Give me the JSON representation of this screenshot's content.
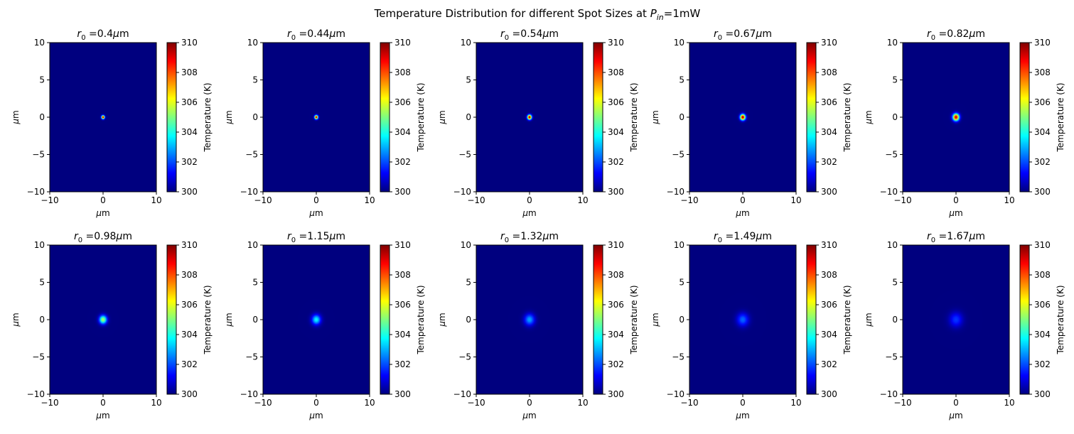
{
  "figure": {
    "title_main": "Temperature Distribution for different Spot Sizes at ",
    "title_symbol": "P",
    "title_subscript": "in",
    "title_suffix": "=1mW"
  },
  "chart_data": [
    {
      "type": "heatmap",
      "title": "r0 =0.4μm",
      "title_value": "=0.4",
      "spot_radius_um": 0.4,
      "peak_temperature_k": 310.0
    },
    {
      "type": "heatmap",
      "title": "r0 =0.44μm",
      "title_value": "=0.44",
      "spot_radius_um": 0.44,
      "peak_temperature_k": 310.0
    },
    {
      "type": "heatmap",
      "title": "r0 =0.54μm",
      "title_value": "=0.54",
      "spot_radius_um": 0.54,
      "peak_temperature_k": 310.0
    },
    {
      "type": "heatmap",
      "title": "r0 =0.67μm",
      "title_value": "=0.67",
      "spot_radius_um": 0.67,
      "peak_temperature_k": 310.0
    },
    {
      "type": "heatmap",
      "title": "r0 =0.82μm",
      "title_value": "=0.82",
      "spot_radius_um": 0.82,
      "peak_temperature_k": 309.5
    },
    {
      "type": "heatmap",
      "title": "r0 =0.98μm",
      "title_value": "=0.98",
      "spot_radius_um": 0.98,
      "peak_temperature_k": 305.5
    },
    {
      "type": "heatmap",
      "title": "r0 =1.15μm",
      "title_value": "=1.15",
      "spot_radius_um": 1.15,
      "peak_temperature_k": 303.8
    },
    {
      "type": "heatmap",
      "title": "r0 =1.32μm",
      "title_value": "=1.32",
      "spot_radius_um": 1.32,
      "peak_temperature_k": 302.9
    },
    {
      "type": "heatmap",
      "title": "r0 =1.49μm",
      "title_value": "=1.49",
      "spot_radius_um": 1.49,
      "peak_temperature_k": 302.3
    },
    {
      "type": "heatmap",
      "title": "r0 =1.67μm",
      "title_value": "=1.67",
      "spot_radius_um": 1.67,
      "peak_temperature_k": 301.8
    }
  ],
  "axes": {
    "title_symbol": "r",
    "title_subscript": "0",
    "title_unit": "μm",
    "xlabel": "μm",
    "ylabel": "μm",
    "xlim": [
      -10,
      10
    ],
    "ylim": [
      -10,
      10
    ],
    "xticks": [
      "−10",
      "0",
      "10"
    ],
    "xtick_values": [
      -10,
      0,
      10
    ],
    "yticks": [
      "10",
      "5",
      "0",
      "−5",
      "−10"
    ],
    "ytick_values": [
      10,
      5,
      0,
      -5,
      -10
    ]
  },
  "colorbar": {
    "label": "Temperature (K)",
    "range": [
      300,
      310
    ],
    "ticks": [
      "310",
      "308",
      "306",
      "304",
      "302",
      "300"
    ],
    "tick_values": [
      310,
      308,
      306,
      304,
      302,
      300
    ],
    "colormap": "jet",
    "colors": [
      "#00007f",
      "#0000ff",
      "#007fff",
      "#00ffff",
      "#7fff7f",
      "#ffff00",
      "#ff7f00",
      "#ff0000",
      "#7f0000"
    ]
  }
}
